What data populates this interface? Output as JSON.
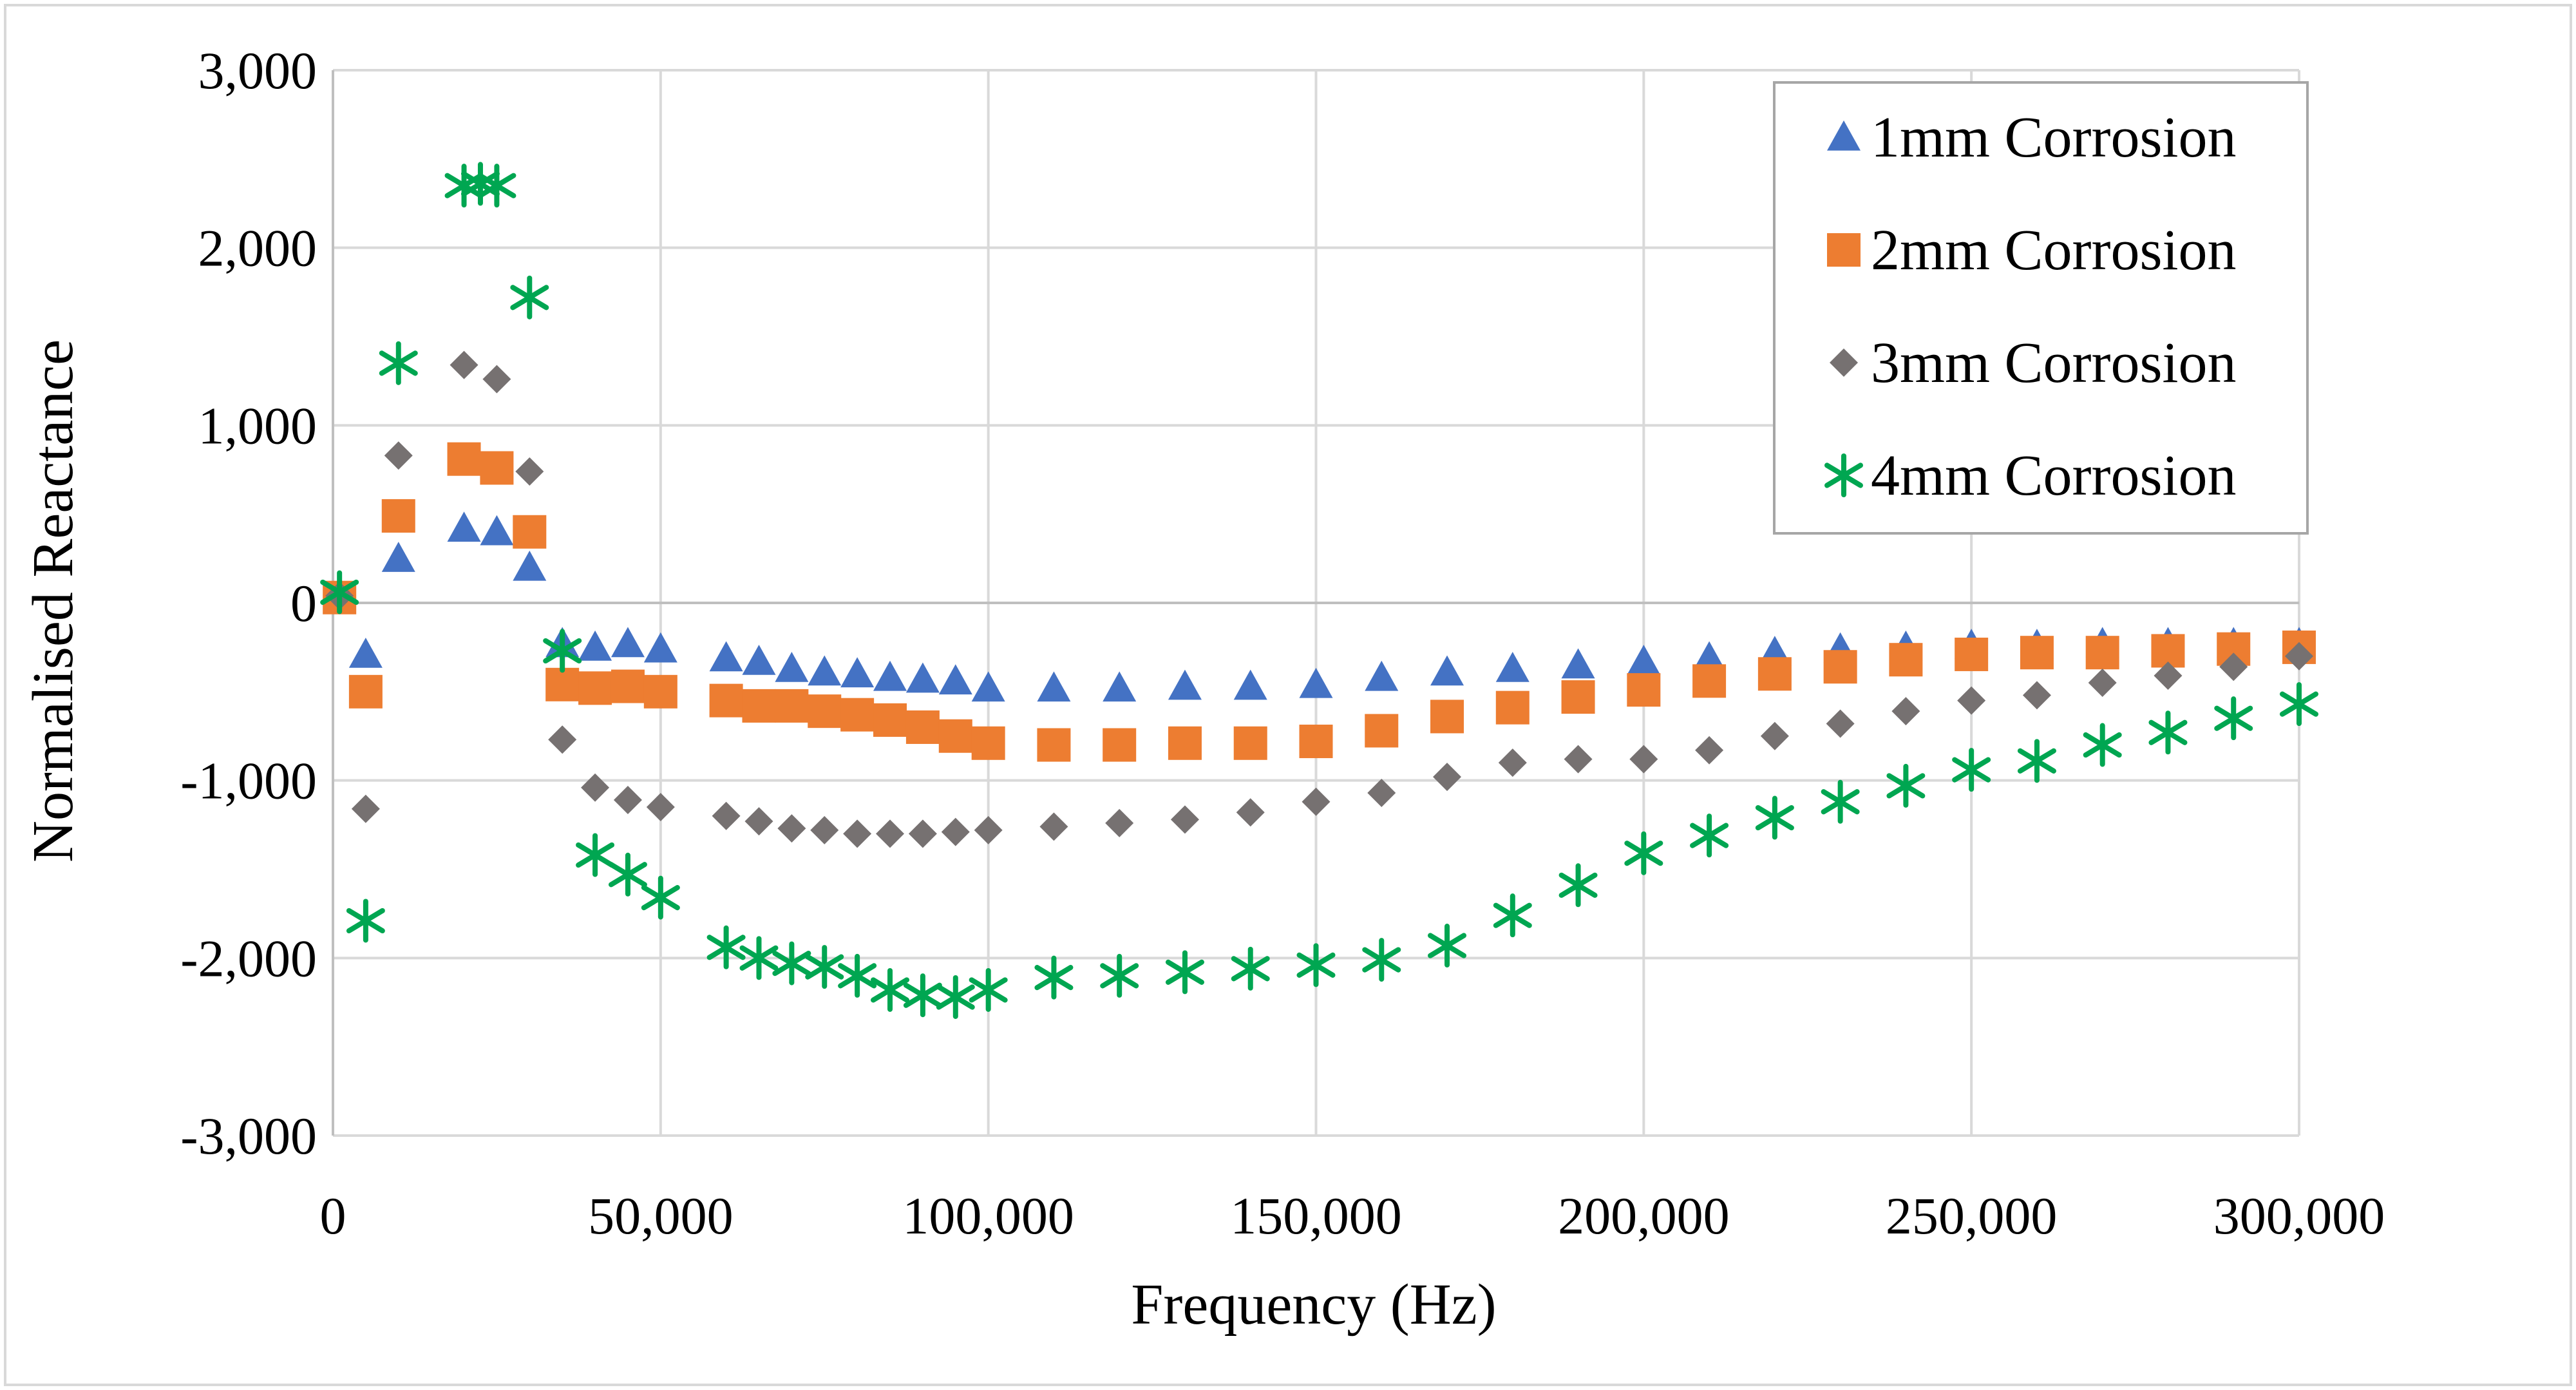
{
  "chart_data": {
    "type": "scatter",
    "title": "",
    "xlabel": "Frequency (Hz)",
    "ylabel": "Normalised Reactance",
    "xlim": [
      0,
      300000
    ],
    "ylim": [
      -3000,
      3000
    ],
    "xticks": [
      0,
      50000,
      100000,
      150000,
      200000,
      250000,
      300000
    ],
    "xtick_labels": [
      "0",
      "50,000",
      "100,000",
      "150,000",
      "200,000",
      "250,000",
      "300,000"
    ],
    "yticks": [
      3000,
      2000,
      1000,
      0,
      -1000,
      -2000,
      -3000
    ],
    "ytick_labels": [
      "3,000",
      "2,000",
      "1,000",
      "0",
      "-1,000",
      "-2,000",
      "-3,000"
    ],
    "grid": true,
    "legend_position": "top-right",
    "series": [
      {
        "name": "1mm Corrosion",
        "marker": "triangle",
        "color": "#4472C4",
        "points": [
          [
            1000,
            20
          ],
          [
            5000,
            -290
          ],
          [
            10000,
            250
          ],
          [
            20000,
            420
          ],
          [
            25000,
            400
          ],
          [
            30000,
            200
          ],
          [
            35000,
            -230
          ],
          [
            40000,
            -250
          ],
          [
            45000,
            -230
          ],
          [
            50000,
            -260
          ],
          [
            60000,
            -310
          ],
          [
            65000,
            -330
          ],
          [
            70000,
            -370
          ],
          [
            75000,
            -390
          ],
          [
            80000,
            -400
          ],
          [
            85000,
            -420
          ],
          [
            90000,
            -430
          ],
          [
            95000,
            -440
          ],
          [
            100000,
            -480
          ],
          [
            110000,
            -480
          ],
          [
            120000,
            -480
          ],
          [
            130000,
            -470
          ],
          [
            140000,
            -470
          ],
          [
            150000,
            -460
          ],
          [
            160000,
            -420
          ],
          [
            170000,
            -390
          ],
          [
            180000,
            -370
          ],
          [
            190000,
            -350
          ],
          [
            200000,
            -330
          ],
          [
            210000,
            -310
          ],
          [
            220000,
            -280
          ],
          [
            230000,
            -260
          ],
          [
            240000,
            -250
          ],
          [
            250000,
            -240
          ],
          [
            260000,
            -240
          ],
          [
            270000,
            -230
          ],
          [
            280000,
            -230
          ],
          [
            290000,
            -230
          ],
          [
            300000,
            -230
          ]
        ]
      },
      {
        "name": "2mm Corrosion",
        "marker": "square",
        "color": "#ED7D31",
        "points": [
          [
            1000,
            30
          ],
          [
            5000,
            -500
          ],
          [
            10000,
            490
          ],
          [
            20000,
            810
          ],
          [
            25000,
            760
          ],
          [
            30000,
            400
          ],
          [
            35000,
            -460
          ],
          [
            40000,
            -480
          ],
          [
            45000,
            -470
          ],
          [
            50000,
            -500
          ],
          [
            60000,
            -550
          ],
          [
            65000,
            -580
          ],
          [
            70000,
            -580
          ],
          [
            75000,
            -610
          ],
          [
            80000,
            -630
          ],
          [
            85000,
            -660
          ],
          [
            90000,
            -700
          ],
          [
            95000,
            -750
          ],
          [
            100000,
            -790
          ],
          [
            110000,
            -800
          ],
          [
            120000,
            -800
          ],
          [
            130000,
            -790
          ],
          [
            140000,
            -790
          ],
          [
            150000,
            -780
          ],
          [
            160000,
            -720
          ],
          [
            170000,
            -640
          ],
          [
            180000,
            -590
          ],
          [
            190000,
            -530
          ],
          [
            200000,
            -490
          ],
          [
            210000,
            -440
          ],
          [
            220000,
            -400
          ],
          [
            230000,
            -360
          ],
          [
            240000,
            -320
          ],
          [
            250000,
            -290
          ],
          [
            260000,
            -280
          ],
          [
            270000,
            -280
          ],
          [
            280000,
            -270
          ],
          [
            290000,
            -260
          ],
          [
            300000,
            -250
          ]
        ]
      },
      {
        "name": "3mm Corrosion",
        "marker": "diamond",
        "color": "#767171",
        "points": [
          [
            1000,
            40
          ],
          [
            5000,
            -1160
          ],
          [
            10000,
            830
          ],
          [
            20000,
            1340
          ],
          [
            25000,
            1260
          ],
          [
            30000,
            740
          ],
          [
            35000,
            -770
          ],
          [
            40000,
            -1040
          ],
          [
            45000,
            -1110
          ],
          [
            50000,
            -1150
          ],
          [
            60000,
            -1200
          ],
          [
            65000,
            -1230
          ],
          [
            70000,
            -1270
          ],
          [
            75000,
            -1280
          ],
          [
            80000,
            -1300
          ],
          [
            85000,
            -1300
          ],
          [
            90000,
            -1300
          ],
          [
            95000,
            -1290
          ],
          [
            100000,
            -1280
          ],
          [
            110000,
            -1260
          ],
          [
            120000,
            -1240
          ],
          [
            130000,
            -1220
          ],
          [
            140000,
            -1180
          ],
          [
            150000,
            -1120
          ],
          [
            160000,
            -1070
          ],
          [
            170000,
            -980
          ],
          [
            180000,
            -900
          ],
          [
            190000,
            -880
          ],
          [
            200000,
            -880
          ],
          [
            210000,
            -830
          ],
          [
            220000,
            -750
          ],
          [
            230000,
            -680
          ],
          [
            240000,
            -610
          ],
          [
            250000,
            -550
          ],
          [
            260000,
            -520
          ],
          [
            270000,
            -450
          ],
          [
            280000,
            -410
          ],
          [
            290000,
            -360
          ],
          [
            300000,
            -300
          ]
        ]
      },
      {
        "name": "4mm Corrosion",
        "marker": "asterisk",
        "color": "#00A651",
        "points": [
          [
            1000,
            60
          ],
          [
            5000,
            -1790
          ],
          [
            10000,
            1350
          ],
          [
            20000,
            2350
          ],
          [
            22500,
            2360
          ],
          [
            25000,
            2350
          ],
          [
            30000,
            1720
          ],
          [
            35000,
            -270
          ],
          [
            40000,
            -1420
          ],
          [
            45000,
            -1530
          ],
          [
            50000,
            -1660
          ],
          [
            60000,
            -1940
          ],
          [
            65000,
            -2000
          ],
          [
            70000,
            -2030
          ],
          [
            75000,
            -2050
          ],
          [
            80000,
            -2100
          ],
          [
            85000,
            -2180
          ],
          [
            90000,
            -2210
          ],
          [
            95000,
            -2220
          ],
          [
            100000,
            -2180
          ],
          [
            110000,
            -2110
          ],
          [
            120000,
            -2100
          ],
          [
            130000,
            -2080
          ],
          [
            140000,
            -2060
          ],
          [
            150000,
            -2040
          ],
          [
            160000,
            -2010
          ],
          [
            170000,
            -1930
          ],
          [
            180000,
            -1760
          ],
          [
            190000,
            -1590
          ],
          [
            200000,
            -1410
          ],
          [
            210000,
            -1310
          ],
          [
            220000,
            -1210
          ],
          [
            230000,
            -1120
          ],
          [
            240000,
            -1030
          ],
          [
            250000,
            -940
          ],
          [
            260000,
            -890
          ],
          [
            270000,
            -800
          ],
          [
            280000,
            -730
          ],
          [
            290000,
            -650
          ],
          [
            300000,
            -570
          ]
        ]
      }
    ]
  }
}
